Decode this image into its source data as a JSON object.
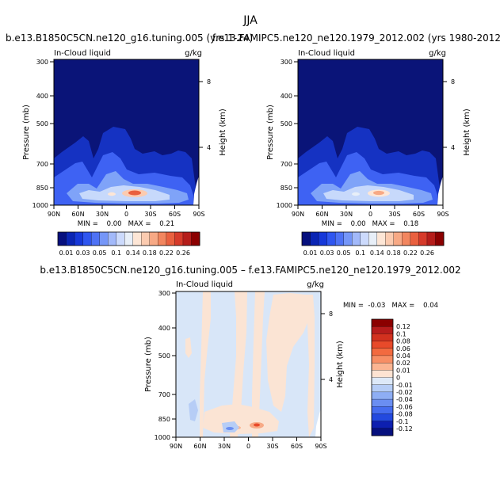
{
  "figure": {
    "season": "JJA",
    "palette_colors": {
      "dark_navy": "#0a1470",
      "blue": "#2c4ff0",
      "light_blue": "#cfe3fb",
      "peach": "#fbe3d2",
      "red": "#e04b3a",
      "dark_red": "#8b0000"
    }
  },
  "chart_data": [
    {
      "type": "heatmap",
      "title": "b.e13.B1850C5CN.ne120_g16.tuning.005 (yrs 1-24)",
      "left_label": "In-Cloud liquid",
      "right_label": "g/kg",
      "xlabel": "",
      "ylabel": "Pressure (mb)",
      "right_axis_label": "Height (km)",
      "x_ticks": [
        "90N",
        "60N",
        "30N",
        "0",
        "30S",
        "60S",
        "90S"
      ],
      "y_ticks": [
        "300",
        "400",
        "500",
        "700",
        "850",
        "1000"
      ],
      "right_ticks": [
        "8",
        "4"
      ],
      "stats_text": "MIN =    0.00   MAX =    0.21",
      "colorbar_labels": [
        "0.01",
        "0.03",
        "0.05",
        "0.1",
        "0.14",
        "0.18",
        "0.22",
        "0.26"
      ],
      "colorbar_colors": [
        "#06107e",
        "#0a25b4",
        "#1638d9",
        "#2f56f0",
        "#4e72f5",
        "#7596f8",
        "#a2b9fa",
        "#ccdafc",
        "#e8eff8",
        "#fde6d6",
        "#fbcbb0",
        "#f7a985",
        "#f2865f",
        "#e9603f",
        "#d63a2a",
        "#b51d1a",
        "#8b0000"
      ],
      "min": 0.0,
      "max": 0.21
    },
    {
      "type": "heatmap",
      "title": "f.e13.FAMIPC5.ne120_ne120.1979_2012.002 (yrs 1980-2012)",
      "left_label": "In-Cloud liquid",
      "right_label": "g/kg",
      "xlabel": "",
      "ylabel": "Pressure (mb)",
      "right_axis_label": "Height (km)",
      "x_ticks": [
        "90N",
        "60N",
        "30N",
        "0",
        "30S",
        "60S",
        "90S"
      ],
      "y_ticks": [
        "300",
        "400",
        "500",
        "700",
        "850",
        "1000"
      ],
      "right_ticks": [
        "8",
        "4"
      ],
      "stats_text": "MIN =    0.00   MAX =    0.18",
      "colorbar_labels": [
        "0.01",
        "0.03",
        "0.05",
        "0.1",
        "0.14",
        "0.18",
        "0.22",
        "0.26"
      ],
      "colorbar_colors": [
        "#06107e",
        "#0a25b4",
        "#1638d9",
        "#2f56f0",
        "#4e72f5",
        "#7596f8",
        "#a2b9fa",
        "#ccdafc",
        "#e8eff8",
        "#fde6d6",
        "#fbcbb0",
        "#f7a985",
        "#f2865f",
        "#e9603f",
        "#d63a2a",
        "#b51d1a",
        "#8b0000"
      ],
      "min": 0.0,
      "max": 0.18
    },
    {
      "type": "heatmap",
      "title": "b.e13.B1850C5CN.ne120_g16.tuning.005 – f.e13.FAMIPC5.ne120_ne120.1979_2012.002",
      "left_label": "In-Cloud liquid",
      "right_label": "g/kg",
      "xlabel": "",
      "ylabel": "Pressure (mb)",
      "right_axis_label": "Height (km)",
      "x_ticks": [
        "90N",
        "60N",
        "30N",
        "0",
        "30S",
        "60S",
        "90S"
      ],
      "y_ticks": [
        "300",
        "400",
        "500",
        "700",
        "850",
        "1000"
      ],
      "right_ticks": [
        "8",
        "4"
      ],
      "stats_text": "MIN =  -0.03   MAX =    0.04",
      "colorbar_labels": [
        "0.12",
        "0.1",
        "0.08",
        "0.06",
        "0.04",
        "0.02",
        "0.01",
        "0",
        "-0.01",
        "-0.02",
        "-0.04",
        "-0.06",
        "-0.08",
        "-0.1",
        "-0.12"
      ],
      "colorbar_colors": [
        "#8b0000",
        "#b71c1c",
        "#d2311f",
        "#e84a2a",
        "#f26a3f",
        "#f78e64",
        "#fbb592",
        "#fde3d2",
        "#dde9f8",
        "#b6cdf6",
        "#8eaef4",
        "#6a8ef2",
        "#456cef",
        "#2349df",
        "#0d1fb0",
        "#06107e"
      ],
      "min": -0.03,
      "max": 0.04
    }
  ]
}
